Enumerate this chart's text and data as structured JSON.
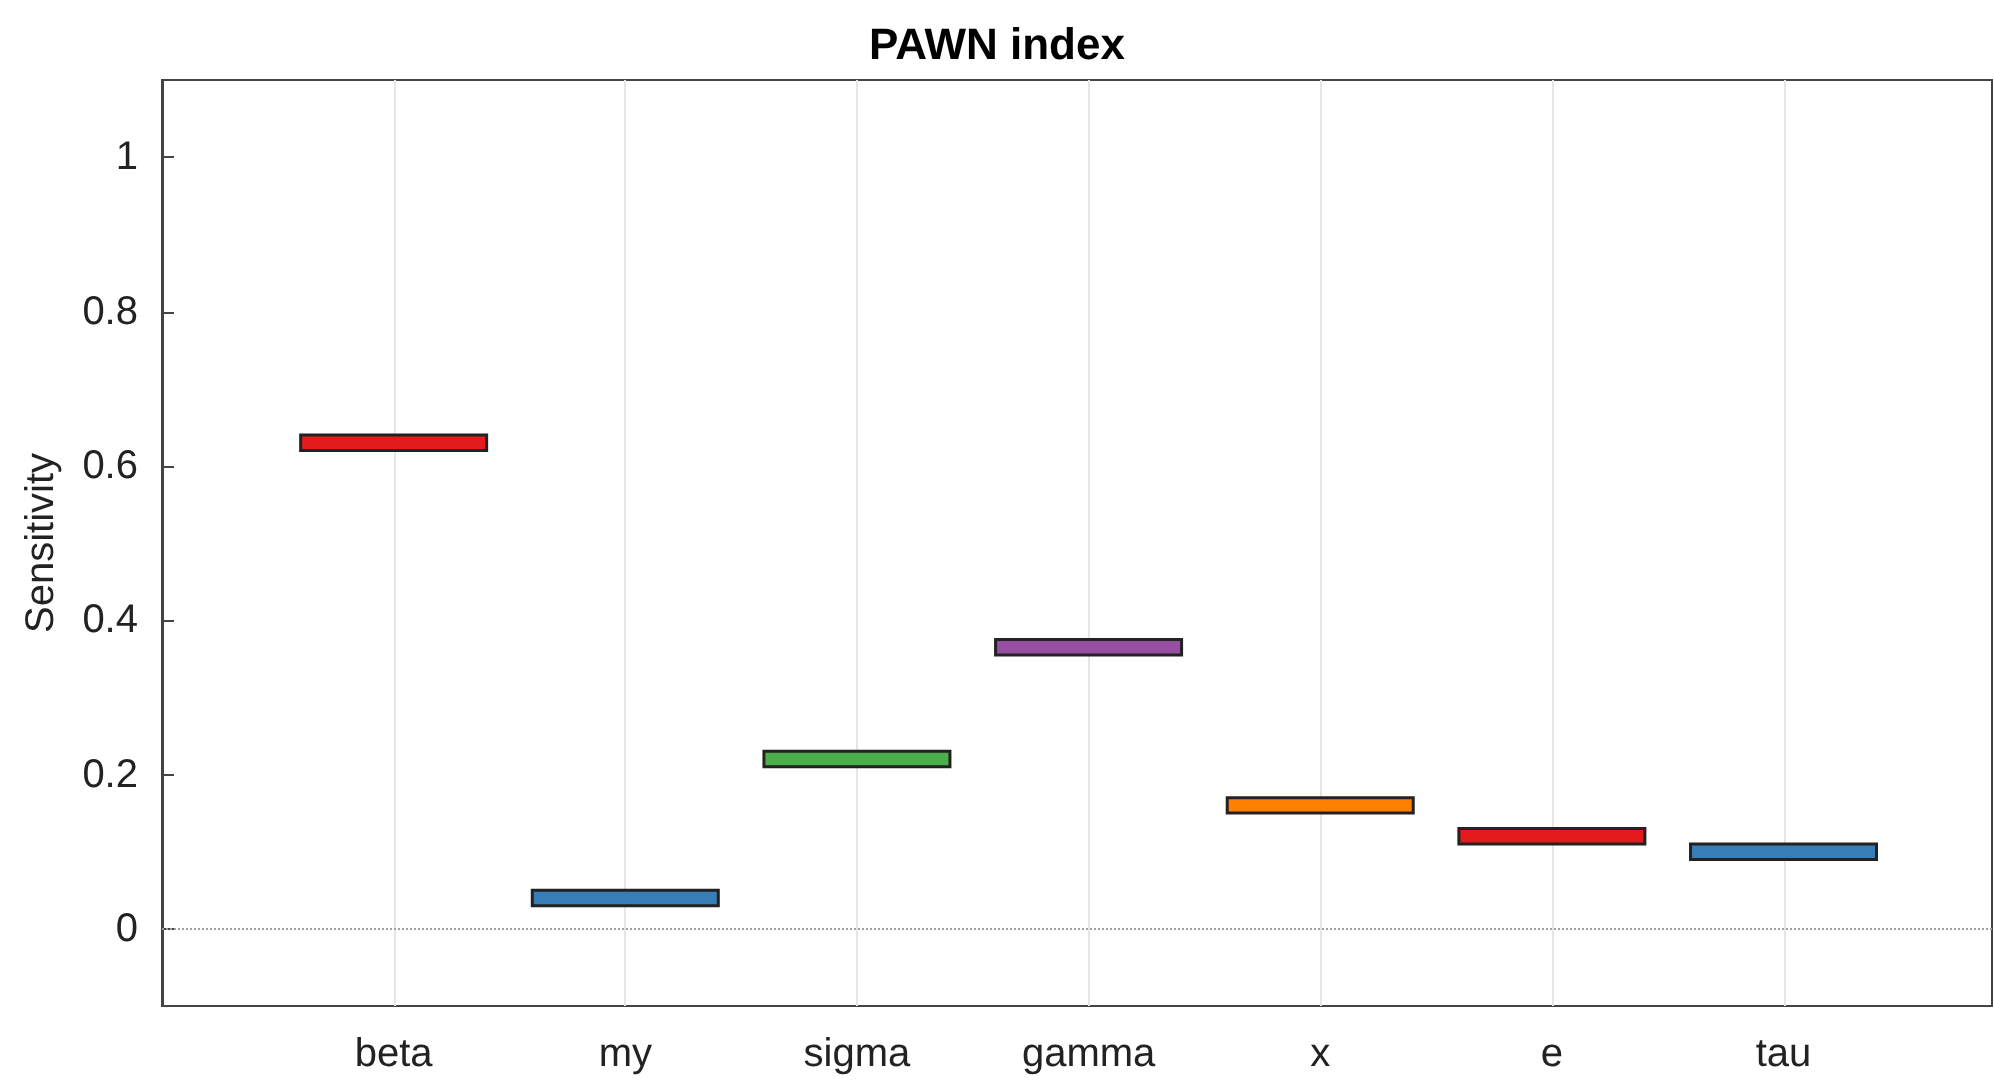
{
  "chart_data": {
    "type": "bar",
    "title": "PAWN index",
    "ylabel": "Sensitivity",
    "categories": [
      "beta",
      "my",
      "sigma",
      "gamma",
      "x",
      "e",
      "tau"
    ],
    "base": [
      0.62,
      0.03,
      0.21,
      0.355,
      0.15,
      0.11,
      0.09
    ],
    "values": [
      0.02,
      0.02,
      0.02,
      0.02,
      0.02,
      0.02,
      0.02
    ],
    "colors": [
      "#e41a1c",
      "#377eb8",
      "#4daf4a",
      "#984ea3",
      "#ff7f00",
      "#e41a1c",
      "#377eb8"
    ],
    "ylim": [
      -0.1,
      1.1
    ],
    "yticks": [
      0,
      0.2,
      0.4,
      0.6,
      0.8,
      1
    ],
    "grid": "x",
    "ref_lines": [
      {
        "axis": "y",
        "value": 0,
        "color": "#a0a0a0",
        "line_style": "dotted"
      }
    ]
  }
}
